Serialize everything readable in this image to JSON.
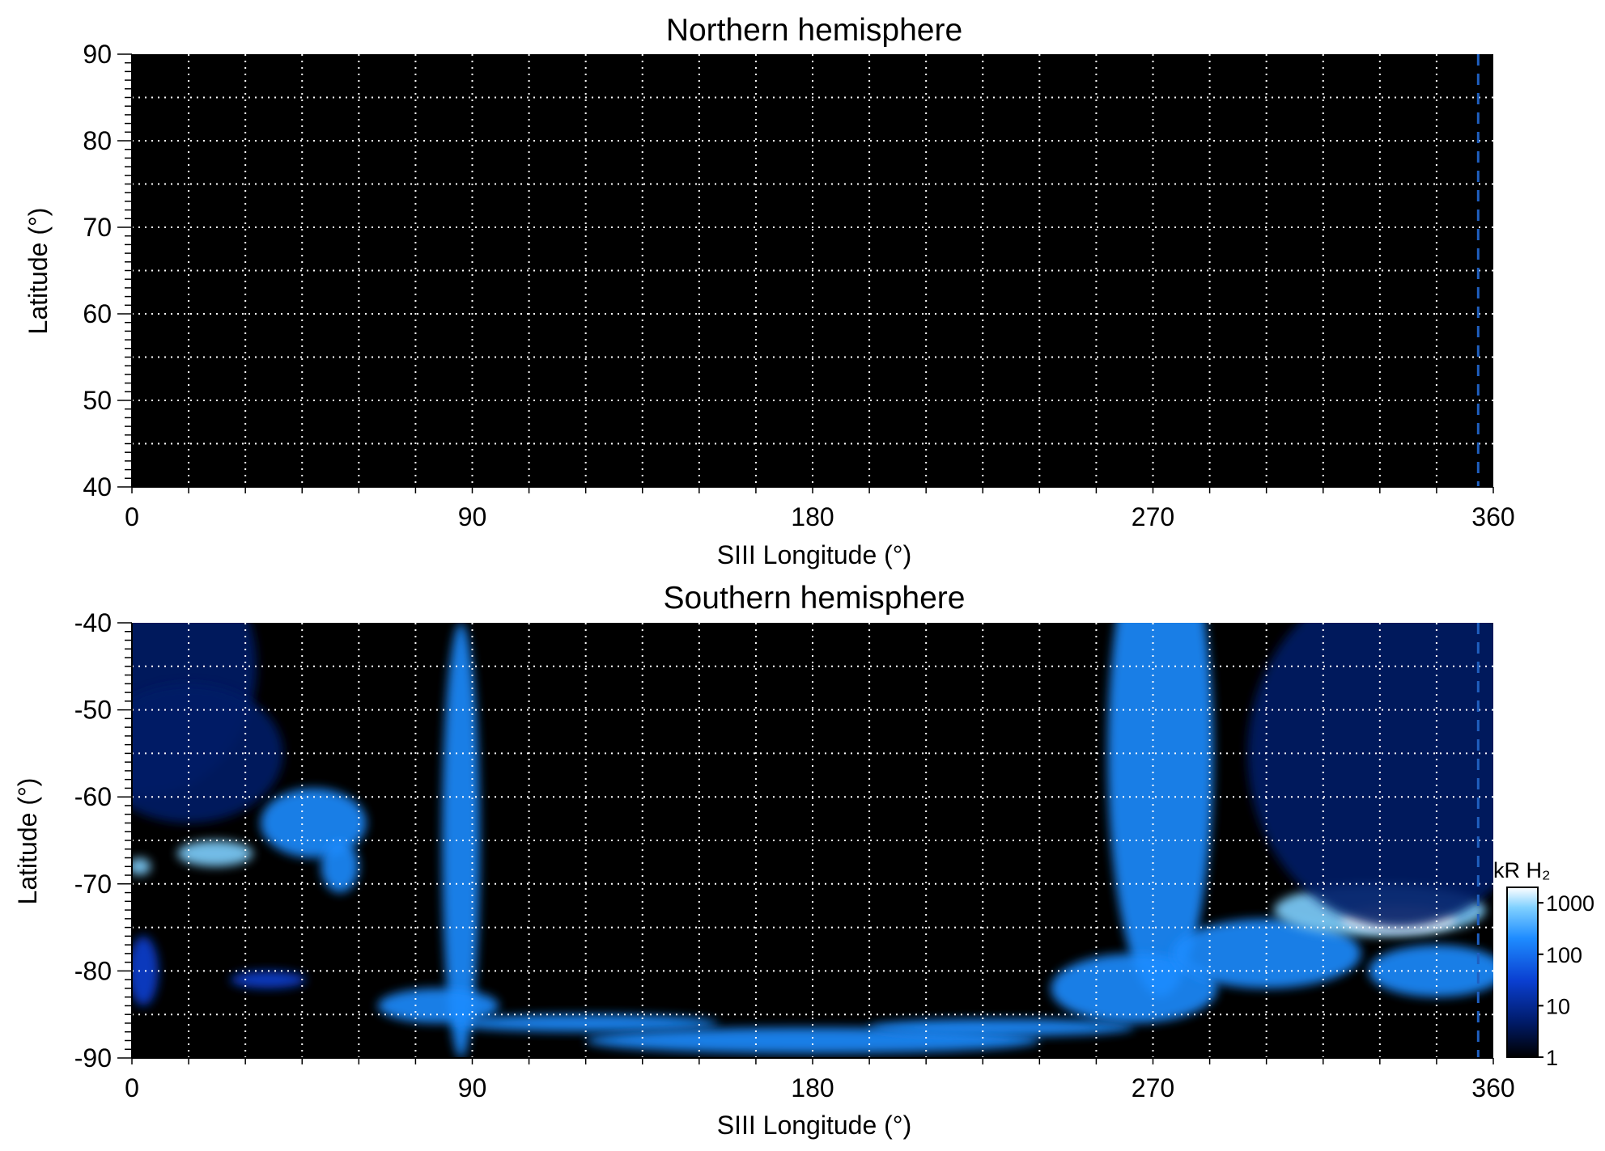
{
  "chart_data": [
    {
      "type": "heatmap",
      "title": "Northern hemisphere",
      "xlabel": "SIII Longitude (°)",
      "ylabel": "Latitude (°)",
      "xlim": [
        0,
        360
      ],
      "ylim": [
        40,
        90
      ],
      "xticks": [
        "0",
        "90",
        "180",
        "270",
        "360"
      ],
      "yticks": [
        "90",
        "80",
        "70",
        "60",
        "50",
        "40"
      ],
      "grid": true,
      "reference_line_longitude": 356,
      "emission": []
    },
    {
      "type": "heatmap",
      "title": "Southern hemisphere",
      "xlabel": "SIII Longitude (°)",
      "ylabel": "Latitude (°)",
      "xlim": [
        0,
        360
      ],
      "ylim": [
        -90,
        -40
      ],
      "xticks": [
        "0",
        "90",
        "180",
        "270",
        "360"
      ],
      "yticks": [
        "-40",
        "-50",
        "-60",
        "-70",
        "-80",
        "-90"
      ],
      "grid": true,
      "reference_line_longitude": 356,
      "emission": [
        {
          "lon": 3,
          "lat": -45,
          "dlon": 30,
          "dlat": 15,
          "level": 3
        },
        {
          "lon": 15,
          "lat": -55,
          "dlon": 25,
          "dlat": 8,
          "level": 3
        },
        {
          "lon": 48,
          "lat": -63,
          "dlon": 14,
          "dlat": 4,
          "level": 100
        },
        {
          "lon": 22,
          "lat": -66.5,
          "dlon": 10,
          "dlat": 1.5,
          "level": 700
        },
        {
          "lon": 55,
          "lat": -68,
          "dlon": 5,
          "dlat": 3,
          "level": 40
        },
        {
          "lon": 2,
          "lat": -68,
          "dlon": 3,
          "dlat": 1,
          "level": 300
        },
        {
          "lon": 3,
          "lat": -80,
          "dlon": 4,
          "dlat": 4,
          "level": 10
        },
        {
          "lon": 36,
          "lat": -81,
          "dlon": 10,
          "dlat": 1,
          "level": 15
        },
        {
          "lon": 87,
          "lat": -65,
          "dlon": 5,
          "dlat": 25,
          "level": 60
        },
        {
          "lon": 81,
          "lat": -84,
          "dlon": 16,
          "dlat": 2,
          "level": 60
        },
        {
          "lon": 120,
          "lat": -86,
          "dlon": 35,
          "dlat": 1,
          "level": 60
        },
        {
          "lon": 180,
          "lat": -88,
          "dlon": 60,
          "dlat": 1.5,
          "level": 50
        },
        {
          "lon": 230,
          "lat": -86.5,
          "dlon": 35,
          "dlat": 1,
          "level": 60
        },
        {
          "lon": 272,
          "lat": -55,
          "dlon": 14,
          "dlat": 28,
          "level": 40
        },
        {
          "lon": 265,
          "lat": -82,
          "dlon": 22,
          "dlat": 4,
          "level": 80
        },
        {
          "lon": 300,
          "lat": -78,
          "dlon": 25,
          "dlat": 4,
          "level": 150
        },
        {
          "lon": 330,
          "lat": -73,
          "dlon": 28,
          "dlat": 3,
          "level": 400
        },
        {
          "lon": 335,
          "lat": -74,
          "dlon": 15,
          "dlat": 1.5,
          "level": 900
        },
        {
          "lon": 345,
          "lat": -80,
          "dlon": 18,
          "dlat": 3,
          "level": 80
        },
        {
          "lon": 335,
          "lat": -55,
          "dlon": 40,
          "dlat": 20,
          "level": 4
        }
      ],
      "colorbar": {
        "label": "kR H₂",
        "ticks": [
          "1000",
          "100",
          "10",
          "1"
        ],
        "range": [
          1,
          2000
        ],
        "scale": "log",
        "colors": [
          "#000000",
          "#001a66",
          "#0a3fd1",
          "#1e8cff",
          "#7fd0ff",
          "#ffffff"
        ]
      }
    }
  ]
}
